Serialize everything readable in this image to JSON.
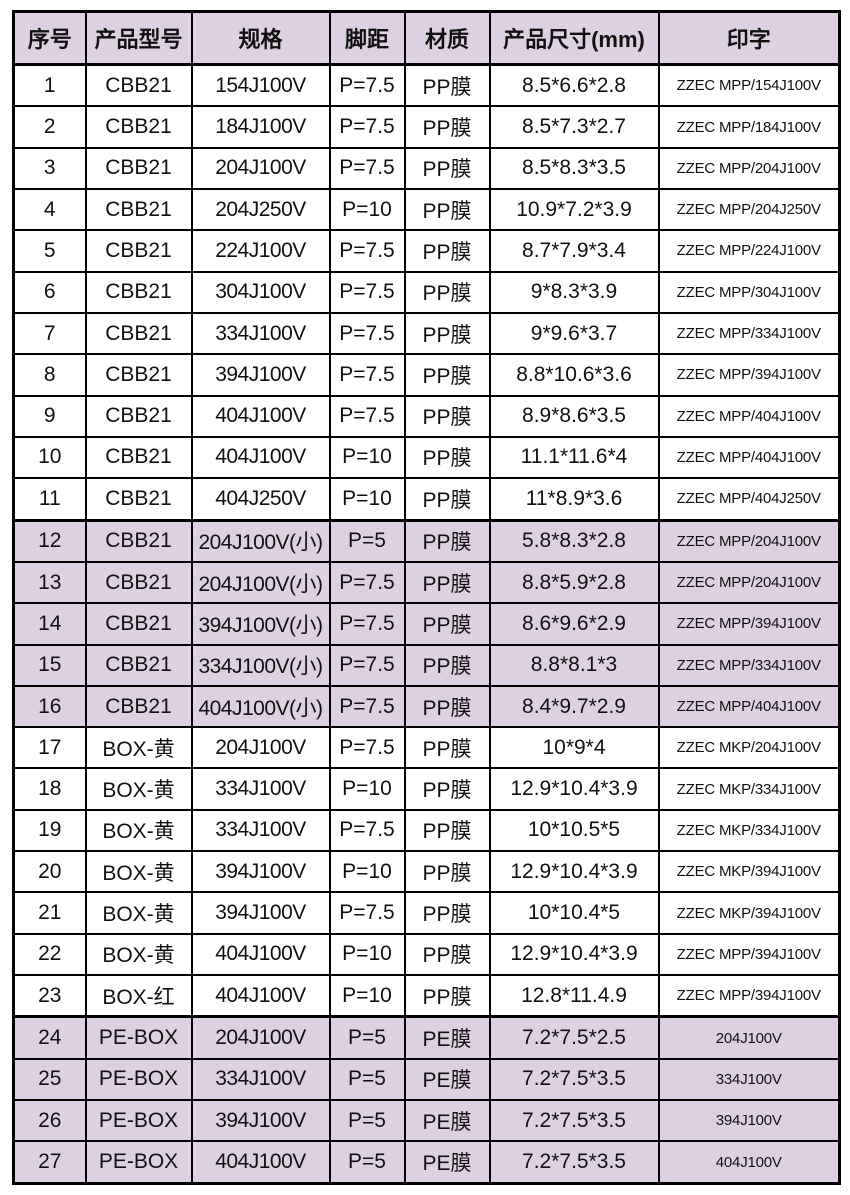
{
  "colors": {
    "highlight_row_bg": "#ddd1e1",
    "border": "#000000",
    "page_bg": "#ffffff",
    "text": "#111111"
  },
  "table": {
    "headers": [
      "序号",
      "产品型号",
      "规格",
      "脚距",
      "材质",
      "产品尺寸(mm)",
      "印字"
    ],
    "rows": [
      {
        "no": "1",
        "model": "CBB21",
        "spec": "154J100V",
        "pitch": "P=7.5",
        "material": "PP膜",
        "size": "8.5*6.6*2.8",
        "print": "ZZEC MPP/154J100V",
        "highlight": false,
        "section_start": false
      },
      {
        "no": "2",
        "model": "CBB21",
        "spec": "184J100V",
        "pitch": "P=7.5",
        "material": "PP膜",
        "size": "8.5*7.3*2.7",
        "print": "ZZEC MPP/184J100V",
        "highlight": false,
        "section_start": false
      },
      {
        "no": "3",
        "model": "CBB21",
        "spec": "204J100V",
        "pitch": "P=7.5",
        "material": "PP膜",
        "size": "8.5*8.3*3.5",
        "print": "ZZEC MPP/204J100V",
        "highlight": false,
        "section_start": false
      },
      {
        "no": "4",
        "model": "CBB21",
        "spec": "204J250V",
        "pitch": "P=10",
        "material": "PP膜",
        "size": "10.9*7.2*3.9",
        "print": "ZZEC MPP/204J250V",
        "highlight": false,
        "section_start": false
      },
      {
        "no": "5",
        "model": "CBB21",
        "spec": "224J100V",
        "pitch": "P=7.5",
        "material": "PP膜",
        "size": "8.7*7.9*3.4",
        "print": "ZZEC MPP/224J100V",
        "highlight": false,
        "section_start": false
      },
      {
        "no": "6",
        "model": "CBB21",
        "spec": "304J100V",
        "pitch": "P=7.5",
        "material": "PP膜",
        "size": "9*8.3*3.9",
        "print": "ZZEC MPP/304J100V",
        "highlight": false,
        "section_start": false
      },
      {
        "no": "7",
        "model": "CBB21",
        "spec": "334J100V",
        "pitch": "P=7.5",
        "material": "PP膜",
        "size": "9*9.6*3.7",
        "print": "ZZEC MPP/334J100V",
        "highlight": false,
        "section_start": false
      },
      {
        "no": "8",
        "model": "CBB21",
        "spec": "394J100V",
        "pitch": "P=7.5",
        "material": "PP膜",
        "size": "8.8*10.6*3.6",
        "print": "ZZEC MPP/394J100V",
        "highlight": false,
        "section_start": false
      },
      {
        "no": "9",
        "model": "CBB21",
        "spec": "404J100V",
        "pitch": "P=7.5",
        "material": "PP膜",
        "size": "8.9*8.6*3.5",
        "print": "ZZEC MPP/404J100V",
        "highlight": false,
        "section_start": false
      },
      {
        "no": "10",
        "model": "CBB21",
        "spec": "404J100V",
        "pitch": "P=10",
        "material": "PP膜",
        "size": "11.1*11.6*4",
        "print": "ZZEC MPP/404J100V",
        "highlight": false,
        "section_start": false
      },
      {
        "no": "11",
        "model": "CBB21",
        "spec": "404J250V",
        "pitch": "P=10",
        "material": "PP膜",
        "size": "11*8.9*3.6",
        "print": "ZZEC MPP/404J250V",
        "highlight": false,
        "section_start": false
      },
      {
        "no": "12",
        "model": "CBB21",
        "spec": "204J100V(小)",
        "pitch": "P=5",
        "material": "PP膜",
        "size": "5.8*8.3*2.8",
        "print": "ZZEC MPP/204J100V",
        "highlight": true,
        "section_start": true
      },
      {
        "no": "13",
        "model": "CBB21",
        "spec": "204J100V(小)",
        "pitch": "P=7.5",
        "material": "PP膜",
        "size": "8.8*5.9*2.8",
        "print": "ZZEC MPP/204J100V",
        "highlight": true,
        "section_start": false
      },
      {
        "no": "14",
        "model": "CBB21",
        "spec": "394J100V(小)",
        "pitch": "P=7.5",
        "material": "PP膜",
        "size": "8.6*9.6*2.9",
        "print": "ZZEC MPP/394J100V",
        "highlight": true,
        "section_start": false
      },
      {
        "no": "15",
        "model": "CBB21",
        "spec": "334J100V(小)",
        "pitch": "P=7.5",
        "material": "PP膜",
        "size": "8.8*8.1*3",
        "print": "ZZEC MPP/334J100V",
        "highlight": true,
        "section_start": false
      },
      {
        "no": "16",
        "model": "CBB21",
        "spec": "404J100V(小)",
        "pitch": "P=7.5",
        "material": "PP膜",
        "size": "8.4*9.7*2.9",
        "print": "ZZEC MPP/404J100V",
        "highlight": true,
        "section_start": false
      },
      {
        "no": "17",
        "model": "BOX-黄",
        "spec": "204J100V",
        "pitch": "P=7.5",
        "material": "PP膜",
        "size": "10*9*4",
        "print": "ZZEC MKP/204J100V",
        "highlight": false,
        "section_start": false
      },
      {
        "no": "18",
        "model": "BOX-黄",
        "spec": "334J100V",
        "pitch": "P=10",
        "material": "PP膜",
        "size": "12.9*10.4*3.9",
        "print": "ZZEC MKP/334J100V",
        "highlight": false,
        "section_start": false
      },
      {
        "no": "19",
        "model": "BOX-黄",
        "spec": "334J100V",
        "pitch": "P=7.5",
        "material": "PP膜",
        "size": "10*10.5*5",
        "print": "ZZEC MKP/334J100V",
        "highlight": false,
        "section_start": false
      },
      {
        "no": "20",
        "model": "BOX-黄",
        "spec": "394J100V",
        "pitch": "P=10",
        "material": "PP膜",
        "size": "12.9*10.4*3.9",
        "print": "ZZEC MKP/394J100V",
        "highlight": false,
        "section_start": false
      },
      {
        "no": "21",
        "model": "BOX-黄",
        "spec": "394J100V",
        "pitch": "P=7.5",
        "material": "PP膜",
        "size": "10*10.4*5",
        "print": "ZZEC MKP/394J100V",
        "highlight": false,
        "section_start": false
      },
      {
        "no": "22",
        "model": "BOX-黄",
        "spec": "404J100V",
        "pitch": "P=10",
        "material": "PP膜",
        "size": "12.9*10.4*3.9",
        "print": "ZZEC MPP/394J100V",
        "highlight": false,
        "section_start": false
      },
      {
        "no": "23",
        "model": "BOX-红",
        "spec": "404J100V",
        "pitch": "P=10",
        "material": "PP膜",
        "size": "12.8*11.4.9",
        "print": "ZZEC MPP/394J100V",
        "highlight": false,
        "section_start": false
      },
      {
        "no": "24",
        "model": "PE-BOX",
        "spec": "204J100V",
        "pitch": "P=5",
        "material": "PE膜",
        "size": "7.2*7.5*2.5",
        "print": "204J100V",
        "highlight": true,
        "section_start": true
      },
      {
        "no": "25",
        "model": "PE-BOX",
        "spec": "334J100V",
        "pitch": "P=5",
        "material": "PE膜",
        "size": "7.2*7.5*3.5",
        "print": "334J100V",
        "highlight": true,
        "section_start": false
      },
      {
        "no": "26",
        "model": "PE-BOX",
        "spec": "394J100V",
        "pitch": "P=5",
        "material": "PE膜",
        "size": "7.2*7.5*3.5",
        "print": "394J100V",
        "highlight": true,
        "section_start": false
      },
      {
        "no": "27",
        "model": "PE-BOX",
        "spec": "404J100V",
        "pitch": "P=5",
        "material": "PE膜",
        "size": "7.2*7.5*3.5",
        "print": "404J100V",
        "highlight": true,
        "section_start": false
      }
    ]
  }
}
